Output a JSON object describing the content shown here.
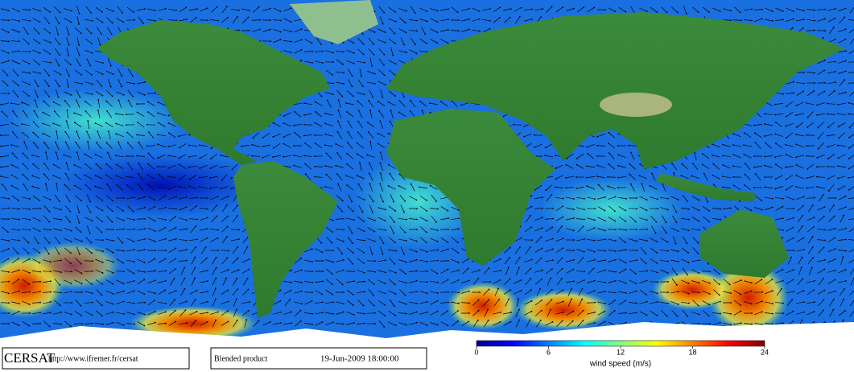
{
  "footer": {
    "logo": "CERSAT",
    "url": "http://www.ifremer.fr/cersat",
    "product": "Blended product",
    "timestamp": "19-Jun-2009 18:00:00"
  },
  "colorbar": {
    "label": "wind speed (m/s)",
    "lim": [
      0,
      24
    ],
    "ticks": [
      0,
      6,
      12,
      18,
      24
    ],
    "colormap": [
      "#00008f",
      "#0000ff",
      "#0080ff",
      "#00ffff",
      "#80ff80",
      "#ffff00",
      "#ff8000",
      "#ff0000",
      "#800000"
    ]
  }
}
